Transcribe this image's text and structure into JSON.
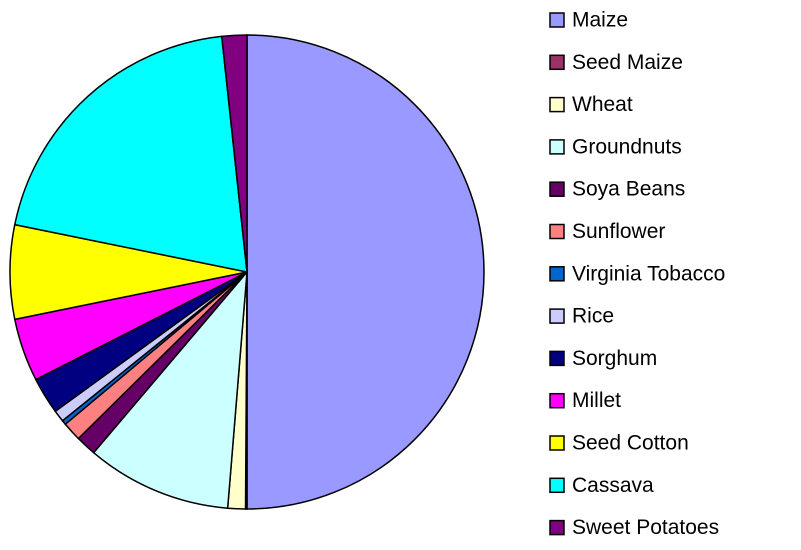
{
  "chart_data": {
    "type": "pie",
    "categories": [
      "Maize",
      "Seed Maize",
      "Wheat",
      "Groundnuts",
      "Soya Beans",
      "Sunflower",
      "Virginia Tobacco",
      "Rice",
      "Sorghum",
      "Millet",
      "Seed Cotton",
      "Cassava",
      "Sweet Potatoes"
    ],
    "values": [
      50,
      0.1,
      1.2,
      9.9,
      1.4,
      1.3,
      0.3,
      0.8,
      2.5,
      4.3,
      6.4,
      20.1,
      1.7
    ],
    "colors": [
      "#9999ff",
      "#993366",
      "#ffffcc",
      "#ccffff",
      "#660066",
      "#ff8080",
      "#0066cc",
      "#ccccff",
      "#000080",
      "#ff00ff",
      "#ffff00",
      "#00ffff",
      "#800080"
    ],
    "legend": "right"
  }
}
